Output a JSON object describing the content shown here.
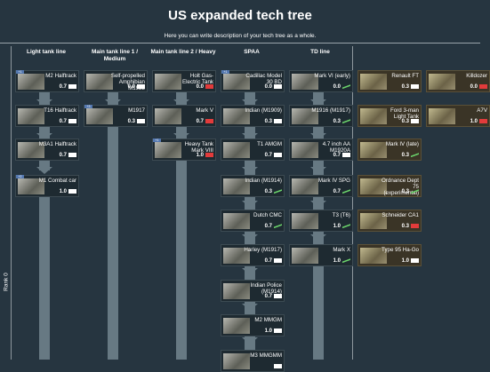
{
  "title": "US expanded tech tree",
  "description": "Here you can write description of your tech tree as a whole.",
  "rank_label": "Rank 0",
  "columns": [
    {
      "header": "Light tank line"
    },
    {
      "header": "Main tank line 1 / Medium"
    },
    {
      "header": "Main tank line 2 / Heavy"
    },
    {
      "header": "SPAA"
    },
    {
      "header": "TD line"
    }
  ],
  "vehicles": [
    {
      "name": "M2 Halftrack",
      "br": "0.7",
      "icon": "white",
      "tag": "+1"
    },
    {
      "name": "T16 Halftrack",
      "br": "0.7",
      "icon": "white",
      "tag": ""
    },
    {
      "name": "M3A1 Halftrack",
      "br": "0.7",
      "icon": "white",
      "tag": ""
    },
    {
      "name": "M1 Combat car",
      "br": "1.0",
      "icon": "white",
      "tag": "+2"
    },
    {
      "name": "Self-propelled Amphibian M1923",
      "br": "0.0",
      "icon": "white",
      "tag": ""
    },
    {
      "name": "M1917",
      "br": "0.3",
      "icon": "white",
      "tag": "+3"
    },
    {
      "name": "Holt Gas-Electric Tank",
      "br": "0.0",
      "icon": "red",
      "tag": ""
    },
    {
      "name": "Mark V",
      "br": "0.7",
      "icon": "red",
      "tag": ""
    },
    {
      "name": "Heavy Tank Mark VIII",
      "br": "1.0",
      "icon": "red",
      "tag": "+1"
    },
    {
      "name": "Cadillac Model 30 BD",
      "br": "0.0",
      "icon": "white",
      "tag": "+1"
    },
    {
      "name": "Indian (M1909)",
      "br": "0.3",
      "icon": "white",
      "tag": ""
    },
    {
      "name": "T1 AMGM",
      "br": "0.7",
      "icon": "white",
      "tag": ""
    },
    {
      "name": "Indian (M1914)",
      "br": "0.3",
      "icon": "green",
      "tag": ""
    },
    {
      "name": "Dutch CMC",
      "br": "0.7",
      "icon": "green",
      "tag": ""
    },
    {
      "name": "Harley (M1917)",
      "br": "0.7",
      "icon": "white",
      "tag": ""
    },
    {
      "name": "Indian Police (M1914)",
      "br": "0.7",
      "icon": "white",
      "tag": ""
    },
    {
      "name": "M2 MMGM",
      "br": "1.0",
      "icon": "white",
      "tag": ""
    },
    {
      "name": "M3 MMGMM",
      "br": "",
      "icon": "white",
      "tag": ""
    },
    {
      "name": "Mark VI (early)",
      "br": "0.0",
      "icon": "green",
      "tag": ""
    },
    {
      "name": "M1916 (M1917)",
      "br": "0.3",
      "icon": "green",
      "tag": ""
    },
    {
      "name": "4.7 inch AA M1920A",
      "br": "0.7",
      "icon": "white",
      "tag": ""
    },
    {
      "name": "Mark IV SPG",
      "br": "0.7",
      "icon": "green",
      "tag": ""
    },
    {
      "name": "T3 (T6)",
      "br": "1.0",
      "icon": "green",
      "tag": ""
    },
    {
      "name": "Mark X",
      "br": "1.0",
      "icon": "green",
      "tag": ""
    }
  ],
  "reserve": [
    {
      "name": "Renault FT",
      "br": "0.3",
      "icon": "white"
    },
    {
      "name": "Killdozer",
      "br": "0.0",
      "icon": "red"
    },
    {
      "name": "Ford 3-man Light Tank",
      "br": "0.3",
      "icon": "white"
    },
    {
      "name": "A7V",
      "br": "1.0",
      "icon": "red"
    },
    {
      "name": "Mark IV (late)",
      "br": "0.3",
      "icon": "green"
    },
    {
      "name": "Ordnance Dept 75 (experimental)",
      "br": "0.3",
      "icon": "green"
    },
    {
      "name": "Schneider CA1",
      "br": "0.3",
      "icon": "red"
    },
    {
      "name": "Type 95 Ha-Go",
      "br": "1.0",
      "icon": "white"
    }
  ]
}
